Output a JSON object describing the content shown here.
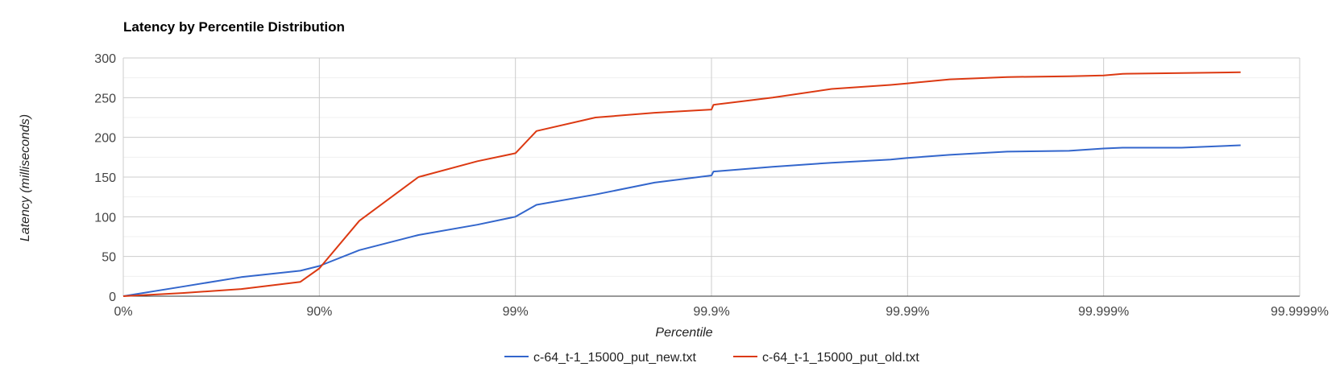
{
  "chart_data": {
    "type": "line",
    "title": "Latency by Percentile Distribution",
    "xlabel": "Percentile",
    "ylabel": "Latency (milliseconds)",
    "x_scale": "log-inverse-percentile",
    "x_ticks": [
      "0%",
      "90%",
      "99%",
      "99.9%",
      "99.99%",
      "99.999%",
      "99.9999%"
    ],
    "y_ticks": [
      "0",
      "50",
      "100",
      "150",
      "200",
      "250",
      "300"
    ],
    "ylim": [
      0,
      300
    ],
    "grid": true,
    "legend_position": "bottom",
    "x": [
      "0%",
      "50%",
      "75%",
      "87.5%",
      "90%",
      "93.75%",
      "96.875%",
      "98.4375%",
      "99%",
      "99.2188%",
      "99.6094%",
      "99.8047%",
      "99.9%",
      "99.9023%",
      "99.9512%",
      "99.9756%",
      "99.9878%",
      "99.99%",
      "99.9939%",
      "99.9969%",
      "99.9985%",
      "99.999%",
      "99.9992%",
      "99.9996%",
      "99.9998%"
    ],
    "series": [
      {
        "name": "c-64_t-1_15000_put_new.txt",
        "color": "#3366cc",
        "values": [
          0,
          12,
          24,
          32,
          38,
          58,
          77,
          90,
          100,
          115,
          128,
          143,
          152,
          157,
          163,
          168,
          172,
          174,
          178,
          182,
          183,
          186,
          187,
          187,
          190
        ]
      },
      {
        "name": "c-64_t-1_15000_put_old.txt",
        "color": "#dc3912",
        "values": [
          0,
          4,
          9,
          18,
          35,
          95,
          150,
          170,
          180,
          208,
          225,
          231,
          235,
          241,
          250,
          261,
          266,
          268,
          273,
          276,
          277,
          278,
          280,
          281,
          282
        ]
      }
    ]
  }
}
